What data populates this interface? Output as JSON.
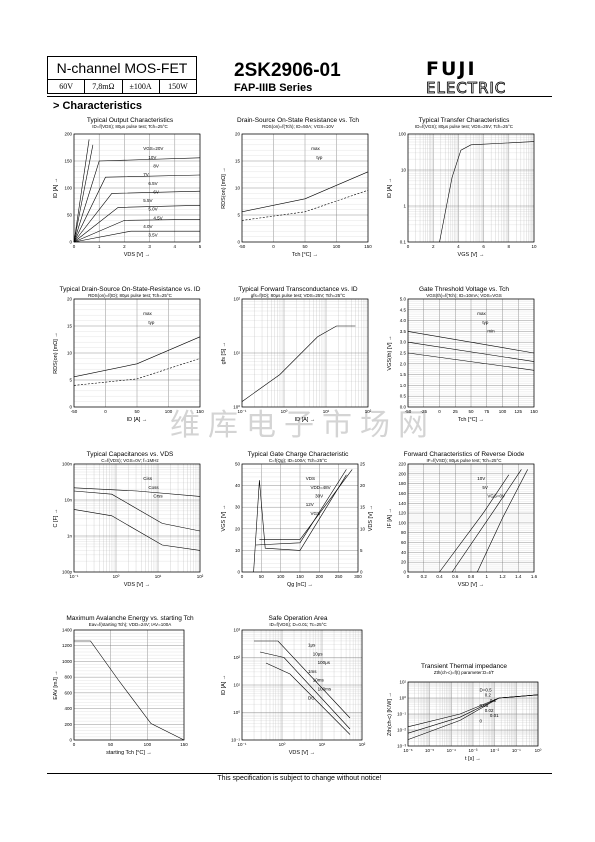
{
  "header": {
    "device_type": "N-channel MOS-FET",
    "specs": [
      "60V",
      "7,8mΩ",
      "±100A",
      "150W"
    ],
    "part_number": "2SK2906-01",
    "series": "FAP-IIIB Series",
    "brand": "FUJI ELECTRIC"
  },
  "section_title": "> Characteristics",
  "charts": [
    {
      "title": "Typical Output Characteristics",
      "sub": "ID=f(VDS); 80μs pulse test; Tch=25°C",
      "xlabel": "VDS [V] →",
      "ylabel": "ID [A] →",
      "xticks": [
        "0",
        "1",
        "2",
        "3",
        "4",
        "5"
      ],
      "yticks": [
        "0",
        "50",
        "100",
        "150",
        "200"
      ],
      "labels": [
        "VGS=20V",
        "10V",
        "8V",
        "7V",
        "6.5V",
        "6V",
        "5.5V",
        "5.0V",
        "4.5V",
        "4.0V",
        "3.5V"
      ]
    },
    {
      "title": "Drain-Source On-State Resistance vs. Tch",
      "sub": "RDS(on)=f(Tch); ID=50A; VGS=10V",
      "xlabel": "Tch [°C] →",
      "ylabel": "RDS(on) [mΩ] →",
      "xticks": [
        "-50",
        "0",
        "50",
        "100",
        "150"
      ],
      "yticks": [
        "0",
        "5",
        "10",
        "15",
        "20"
      ],
      "labels": [
        "max",
        "typ"
      ]
    },
    {
      "title": "Typical Transfer Characteristics",
      "sub": "ID=f(VGS); 80μs pulse test; VDS=25V; Tch=25°C",
      "xlabel": "VGS [V] →",
      "ylabel": "ID [A] →",
      "xticks": [
        "0",
        "2",
        "4",
        "6",
        "8",
        "10"
      ],
      "yticks": [
        "0.1",
        "1",
        "10",
        "100"
      ],
      "labels": []
    },
    {
      "title": "Typical Drain-Source On-State-Resistance vs. ID",
      "sub": "RDS(on)=f(ID); 80μs pulse test; Tch=25°C",
      "xlabel": "ID [A] →",
      "ylabel": "RDS(on) [mΩ] →",
      "xticks": [
        "-50",
        "0",
        "50",
        "100",
        "150"
      ],
      "yticks": [
        "0",
        "5",
        "10",
        "15",
        "20"
      ],
      "labels": [
        "max",
        "typ"
      ]
    },
    {
      "title": "Typical Forward Transconductance vs. ID",
      "sub": "gfs=f(ID); 80μs pulse test; VDS=25V; Tch=25°C",
      "xlabel": "ID [A] →",
      "ylabel": "gfs [S] →",
      "xticks": [
        "10⁻¹",
        "10⁰",
        "10¹",
        "10²"
      ],
      "yticks": [
        "10⁰",
        "10¹",
        "10²"
      ],
      "labels": []
    },
    {
      "title": "Gate Threshold Voltage vs. Tch",
      "sub": "VGS(th)=f(Tch); ID=10mA; VDS=VGS",
      "xlabel": "Tch [°C] →",
      "ylabel": "VGS(th) [V] →",
      "xticks": [
        "-50",
        "-25",
        "0",
        "25",
        "50",
        "75",
        "100",
        "125",
        "150"
      ],
      "yticks": [
        "0.0",
        "0.5",
        "1.0",
        "1.5",
        "2.0",
        "2.5",
        "3.0",
        "3.5",
        "4.0",
        "4.5",
        "5.0"
      ],
      "labels": [
        "max",
        "typ",
        "min"
      ]
    },
    {
      "title": "Typical Capacitances vs. VDS",
      "sub": "C=f(VDS); VGS=0V; f=1MHz",
      "xlabel": "VDS [V] →",
      "ylabel": "C [F] →",
      "xticks": [
        "10⁻¹",
        "10⁰",
        "10¹",
        "10²"
      ],
      "yticks": [
        "100p",
        "1n",
        "10n",
        "100n"
      ],
      "labels": [
        "Ciss",
        "Coss",
        "Crss"
      ]
    },
    {
      "title": "Typical Gate Charge Characteristic",
      "sub": "C=f(Qg); ID=100A; Tch=25°C",
      "xlabel": "Qg [nC] →",
      "ylabel": "VGS [V] →",
      "ylabel2": "VDS [V] →",
      "xticks": [
        "0",
        "50",
        "100",
        "150",
        "200",
        "250",
        "300"
      ],
      "yticks": [
        "0",
        "10",
        "20",
        "30",
        "40",
        "50"
      ],
      "yticks2": [
        "0",
        "5",
        "10",
        "15",
        "20",
        "25"
      ],
      "labels": [
        "VDS",
        "VDD=48V",
        "30V",
        "12V",
        "VGS"
      ]
    },
    {
      "title": "Forward Characteristics of Reverse Diode",
      "sub": "IF=f(VSD); 80μs pulse test; Tch=25°C",
      "xlabel": "VSD [V] →",
      "ylabel": "IF [A] →",
      "xticks": [
        "0",
        "0.2",
        "0.4",
        "0.6",
        "0.8",
        "1",
        "1.2",
        "1.4",
        "1.6"
      ],
      "yticks": [
        "0",
        "20",
        "40",
        "60",
        "80",
        "100",
        "120",
        "140",
        "160",
        "180",
        "200",
        "220"
      ],
      "labels": [
        "10V",
        "5V",
        "VGS=0V"
      ]
    },
    {
      "title": "Maximum Avalanche Energy vs. starting Tch",
      "sub": "Eav=f(starting Tch); VDD=24V; IAV=100A",
      "xlabel": "starting Tch [°C] →",
      "ylabel": "EAV [mJ] →",
      "xticks": [
        "0",
        "50",
        "100",
        "150"
      ],
      "yticks": [
        "0",
        "200",
        "400",
        "600",
        "800",
        "1000",
        "1200",
        "1400"
      ],
      "labels": []
    },
    {
      "title": "Safe Operation Area",
      "sub": "ID=f(VDS); D=0.01; Tc=25°C",
      "xlabel": "VDS [V] →",
      "ylabel": "ID [A] →",
      "xticks": [
        "10⁻¹",
        "10⁰",
        "10¹",
        "10²"
      ],
      "yticks": [
        "10⁻¹",
        "10⁰",
        "10¹",
        "10²",
        "10³"
      ],
      "labels": [
        "1μs",
        "10μs",
        "100μs",
        "1ms",
        "10ms",
        "100ms",
        "DC"
      ]
    },
    {
      "title": "Transient Thermal impedance",
      "sub": "Zth(ch-c)=f(t) parameter:D=t/T",
      "xlabel": "t [s] →",
      "ylabel": "Zth(ch-c) [K/W] →",
      "xticks": [
        "10⁻⁶",
        "10⁻⁵",
        "10⁻⁴",
        "10⁻³",
        "10⁻²",
        "10⁻¹",
        "10⁰"
      ],
      "yticks": [
        "10⁻³",
        "10⁻²",
        "10⁻¹",
        "10⁰",
        "10¹"
      ],
      "labels": [
        "D=0.5",
        "0.2",
        "0.1",
        "0.05",
        "0.02",
        "0.01",
        "0"
      ]
    }
  ],
  "footer": "This specification is subject to change without notice!",
  "watermark": "维库电子市场网"
}
